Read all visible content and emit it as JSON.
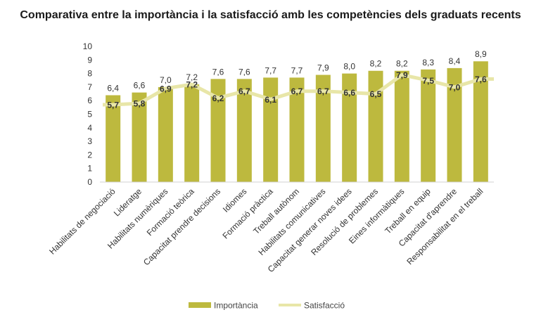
{
  "chart_data": {
    "type": "bar",
    "title": "Comparativa entre la importància i la satisfacció amb les competències dels graduats recents",
    "categories": [
      "Habilitats de negociació",
      "Lideratge",
      "Habilitats numèriques",
      "Formació teòrica",
      "Capacitat prendre decisions",
      "Idiomes",
      "Formació pràctica",
      "Treball autònom",
      "Habilitats comunicatives",
      "Capacitat generar noves idees",
      "Resolució de problemes",
      "Eines informàtiques",
      "Treball en equip",
      "Capacitat d'aprendre",
      "Responsabilitat en el treball"
    ],
    "series": [
      {
        "name": "Importància",
        "type": "bar",
        "color": "#BDB93E",
        "values": [
          6.4,
          6.6,
          7.0,
          7.2,
          7.6,
          7.6,
          7.7,
          7.7,
          7.9,
          8.0,
          8.2,
          8.2,
          8.3,
          8.4,
          8.9
        ],
        "labels": [
          "6,4",
          "6,6",
          "7,0",
          "7,2",
          "7,6",
          "7,6",
          "7,7",
          "7,7",
          "7,9",
          "8,0",
          "8,2",
          "8,2",
          "8,3",
          "8,4",
          "8,9"
        ]
      },
      {
        "name": "Satisfacció",
        "type": "line",
        "color": "#E8E6A8",
        "values": [
          5.7,
          5.8,
          6.9,
          7.2,
          6.2,
          6.7,
          6.1,
          6.7,
          6.7,
          6.6,
          6.5,
          7.9,
          7.5,
          7.0,
          7.6
        ],
        "labels": [
          "5,7",
          "5,8",
          "6,9",
          "7,2",
          "6,2",
          "6,7",
          "6,1",
          "6,7",
          "6,7",
          "6,6",
          "6,5",
          "7,9",
          "7,5",
          "7,0",
          "7,6"
        ]
      }
    ],
    "ylim": [
      0,
      10
    ],
    "yticks": [
      "0",
      "1",
      "2",
      "3",
      "4",
      "5",
      "6",
      "7",
      "8",
      "9",
      "10"
    ],
    "xlabel": "",
    "ylabel": "",
    "grid": false,
    "legend": {
      "position": "bottom",
      "items": [
        {
          "label": "Importància",
          "kind": "bar",
          "color": "#BDB93E"
        },
        {
          "label": "Satisfacció",
          "kind": "line",
          "color": "#E8E6A8"
        }
      ]
    }
  }
}
